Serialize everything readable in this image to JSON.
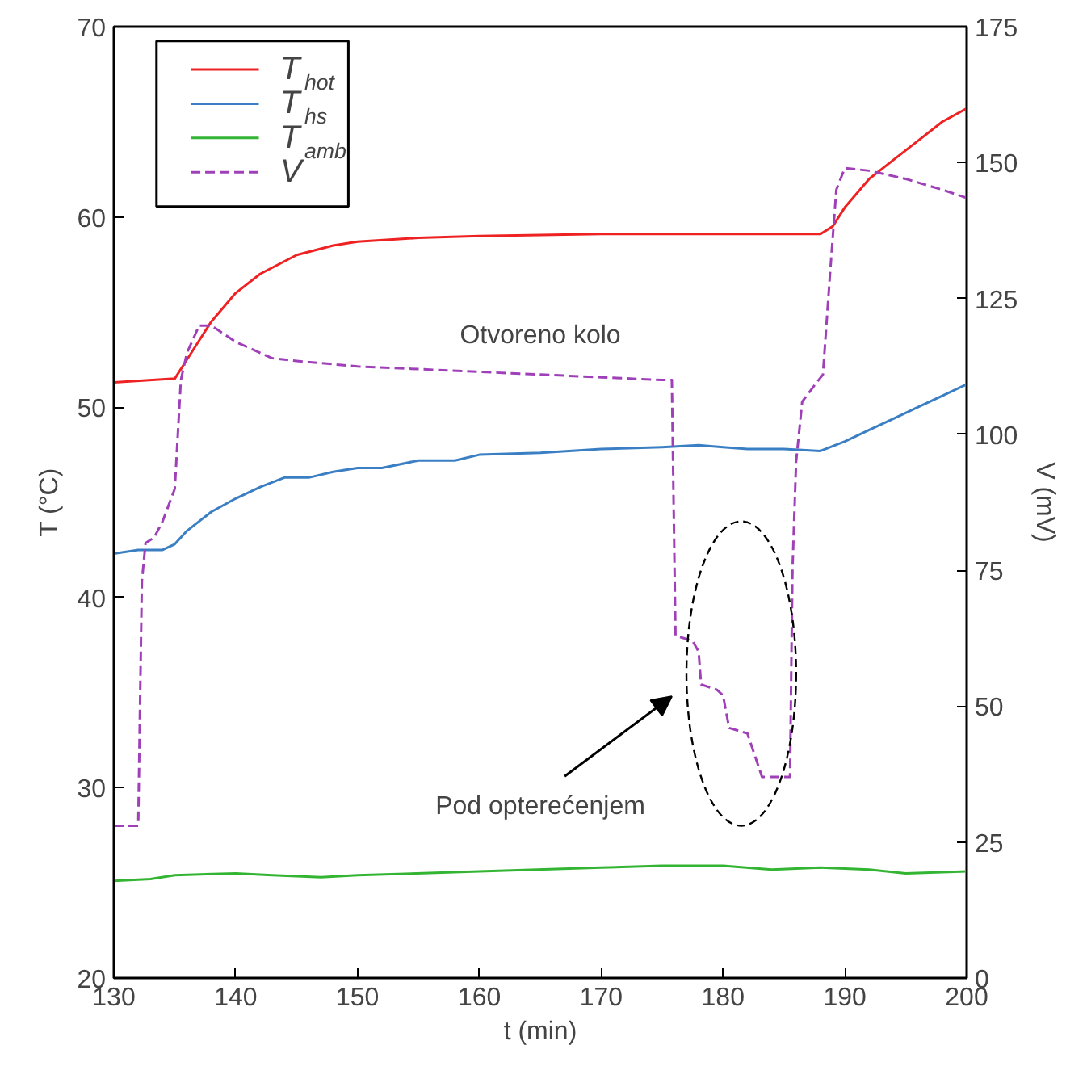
{
  "chart_data": {
    "type": "line",
    "xlabel": "t (min)",
    "ylabel": "T (°C)",
    "y2label": "V (mV)",
    "xlim": [
      130,
      200
    ],
    "xticks": [
      130,
      140,
      150,
      160,
      170,
      180,
      190,
      200
    ],
    "ylim": [
      20,
      70
    ],
    "yticks": [
      20,
      30,
      40,
      50,
      60,
      70
    ],
    "y2lim": [
      0,
      175
    ],
    "y2ticks": [
      0,
      25,
      50,
      75,
      100,
      125,
      150,
      175
    ],
    "grid": false,
    "legend": "top left",
    "series": [
      {
        "name": "T$_{hot}$",
        "color": "#ee2222",
        "line_style": "solid",
        "x": [
          130,
          135,
          136,
          138,
          140,
          142,
          145,
          148,
          150,
          155,
          160,
          170,
          180,
          188,
          189,
          190,
          192,
          194,
          196,
          198,
          200
        ],
        "values": [
          51.3,
          51.5,
          52.5,
          54.5,
          56,
          57,
          58,
          58.5,
          58.7,
          58.9,
          59,
          59.1,
          59.1,
          59.1,
          59.5,
          60.5,
          62,
          63,
          64,
          65,
          65.7
        ]
      },
      {
        "name": "T$_{hs}$",
        "color": "#3a7fc4",
        "line_style": "solid",
        "x": [
          130,
          132,
          134,
          135,
          136,
          138,
          140,
          142,
          144,
          146,
          148,
          150,
          152,
          155,
          158,
          160,
          165,
          170,
          175,
          178,
          180,
          182,
          185,
          188,
          190,
          192,
          194,
          196,
          198,
          200
        ],
        "values": [
          42.3,
          42.5,
          42.5,
          42.8,
          43.5,
          44.5,
          45.2,
          45.8,
          46.3,
          46.3,
          46.6,
          46.8,
          46.8,
          47.2,
          47.2,
          47.5,
          47.6,
          47.8,
          47.9,
          48,
          47.9,
          47.8,
          47.8,
          47.7,
          48.2,
          48.8,
          49.4,
          50,
          50.6,
          51.2
        ]
      },
      {
        "name": "T$_{amb}$",
        "color": "#33b533",
        "line_style": "solid",
        "x": [
          130,
          133,
          135,
          140,
          143,
          147,
          150,
          160,
          170,
          175,
          180,
          184,
          188,
          192,
          195,
          200
        ],
        "values": [
          25.1,
          25.2,
          25.4,
          25.5,
          25.4,
          25.3,
          25.4,
          25.6,
          25.8,
          25.9,
          25.9,
          25.7,
          25.8,
          25.7,
          25.5,
          25.6
        ]
      },
      {
        "name": "V",
        "color": "#a040b8",
        "line_style": "dashed",
        "axis": "y2",
        "x": [
          130,
          132,
          132.3,
          132.6,
          133.3,
          134,
          135,
          135.5,
          136,
          137,
          138,
          140,
          143,
          145,
          150,
          155,
          160,
          165,
          170,
          175,
          175.8,
          176.1,
          177.5,
          178,
          178.2,
          179.5,
          180,
          180.5,
          182,
          183.2,
          185.5,
          185.7,
          186,
          186.5,
          187.5,
          188.2,
          188.8,
          189.3,
          190,
          192,
          195,
          198,
          200
        ],
        "values": [
          28,
          28,
          73,
          80,
          81,
          84,
          90,
          110,
          115,
          120,
          120,
          117,
          114,
          113.5,
          112.5,
          112,
          111.5,
          111,
          110.5,
          110,
          110,
          63,
          62,
          60,
          54,
          53,
          52,
          46,
          45,
          37,
          37,
          75,
          95,
          106,
          109,
          111,
          130,
          145,
          149,
          148.5,
          147,
          145,
          143.5
        ]
      }
    ],
    "annotations": [
      "Otvoreno kolo",
      "Pod opterećenjem"
    ]
  }
}
